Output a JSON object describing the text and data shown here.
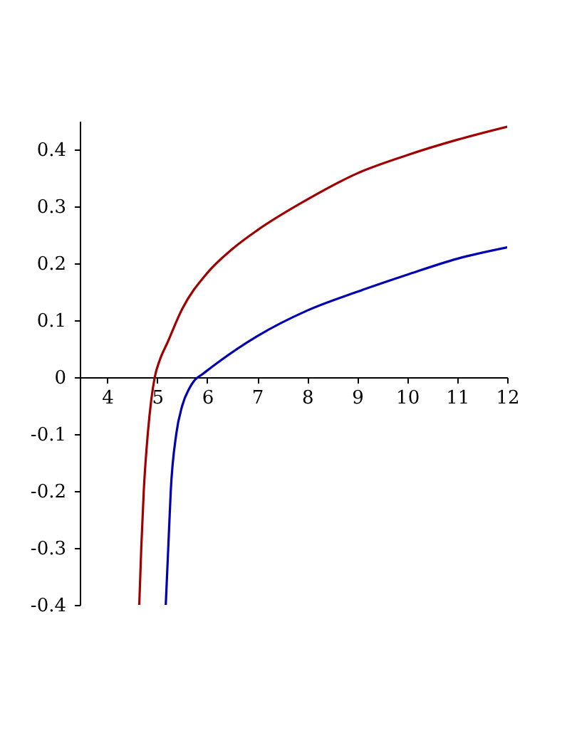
{
  "chart_data": {
    "type": "line",
    "xlim": [
      3.45,
      12
    ],
    "ylim": [
      -0.4,
      0.45
    ],
    "xticks": [
      4,
      5,
      6,
      7,
      8,
      9,
      10,
      11,
      12
    ],
    "yticks": [
      -0.4,
      -0.3,
      -0.2,
      -0.1,
      0,
      0.1,
      0.2,
      0.3,
      0.4
    ],
    "grid": false,
    "legend": false,
    "series": [
      {
        "color": "#a00000",
        "x": [
          4.64,
          4.68,
          4.73,
          4.81,
          4.88,
          4.95,
          5.05,
          5.2,
          5.5,
          6,
          6.5,
          7,
          8,
          9,
          10,
          11,
          12
        ],
        "values": [
          -0.4,
          -0.3,
          -0.2,
          -0.1,
          -0.04,
          0,
          0.03,
          0.06,
          0.12,
          0.183,
          0.225,
          0.258,
          0.312,
          0.358,
          0.39,
          0.417,
          0.44
        ]
      },
      {
        "color": "#0000b0",
        "x": [
          5.17,
          5.22,
          5.27,
          5.38,
          5.5,
          5.64,
          5.75,
          5.9,
          6.2,
          7,
          8,
          9,
          10,
          11,
          12
        ],
        "values": [
          -0.4,
          -0.3,
          -0.2,
          -0.1,
          -0.05,
          -0.02,
          -0.005,
          0.005,
          0.025,
          0.072,
          0.117,
          0.15,
          0.18,
          0.208,
          0.228
        ]
      }
    ]
  }
}
